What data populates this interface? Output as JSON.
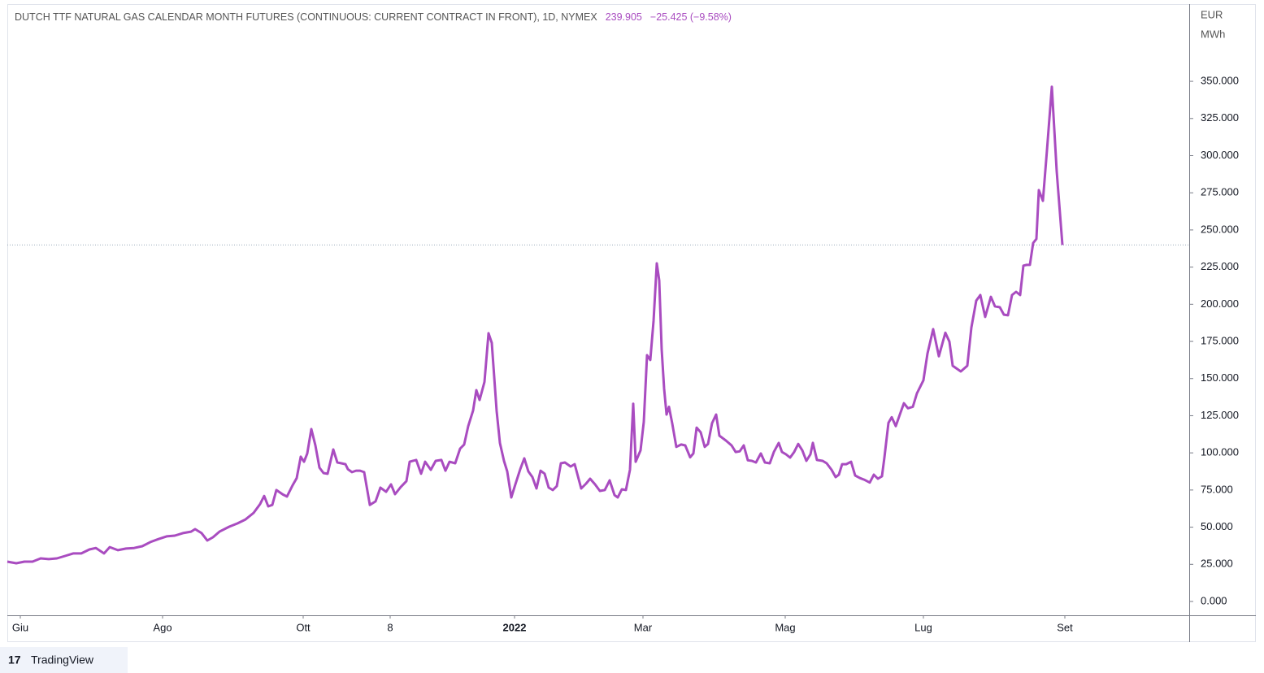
{
  "chart_data": {
    "type": "line",
    "title": "DUTCH TTF NATURAL GAS CALENDAR MONTH FUTURES (CONTINUOUS: CURRENT CONTRACT IN FRONT), 1D, NYMEX",
    "price": "239.905",
    "change": "−25.425 (−9.58%)",
    "unit_top": "EUR",
    "unit_bottom": "MWh",
    "brand": "TradingView",
    "color": "#a94cc0",
    "last_price_line": true,
    "xlim": [
      0,
      1454
    ],
    "ylim": [
      -9.3,
      402
    ],
    "xticks": [
      {
        "value": 16,
        "label": "Giu"
      },
      {
        "value": 191,
        "label": "Ago"
      },
      {
        "value": 364,
        "label": "Ott"
      },
      {
        "value": 471,
        "label": "8"
      },
      {
        "value": 624,
        "label": "2022",
        "bold": true
      },
      {
        "value": 782,
        "label": "Mar"
      },
      {
        "value": 957,
        "label": "Mag"
      },
      {
        "value": 1127,
        "label": "Lug"
      },
      {
        "value": 1301,
        "label": "Set"
      }
    ],
    "yticks": [
      {
        "value": 0,
        "label": "0.000"
      },
      {
        "value": 25,
        "label": "25.000"
      },
      {
        "value": 50,
        "label": "50.000"
      },
      {
        "value": 75,
        "label": "75.000"
      },
      {
        "value": 100,
        "label": "100.000"
      },
      {
        "value": 125,
        "label": "125.000"
      },
      {
        "value": 150,
        "label": "150.000"
      },
      {
        "value": 175,
        "label": "175.000"
      },
      {
        "value": 200,
        "label": "200.000"
      },
      {
        "value": 225,
        "label": "225.000"
      },
      {
        "value": 250,
        "label": "250.000"
      },
      {
        "value": 275,
        "label": "275.000"
      },
      {
        "value": 300,
        "label": "300.000"
      },
      {
        "value": 325,
        "label": "325.000"
      },
      {
        "value": 350,
        "label": "350.000"
      }
    ],
    "x": [
      0,
      11,
      21,
      31,
      41,
      51,
      61,
      71,
      81,
      91,
      101,
      109,
      119,
      126,
      136,
      146,
      156,
      166,
      176,
      186,
      196,
      206,
      216,
      226,
      231,
      239,
      246,
      253,
      261,
      273,
      283,
      293,
      303,
      311,
      316,
      321,
      326,
      331,
      339,
      344,
      351,
      356,
      361,
      365,
      369,
      374,
      379,
      384,
      389,
      394,
      401,
      406,
      411,
      416,
      419,
      424,
      429,
      434,
      439,
      446,
      453,
      459,
      466,
      472,
      477,
      484,
      491,
      495,
      503,
      509,
      514,
      521,
      527,
      534,
      539,
      544,
      551,
      557,
      562,
      567,
      573,
      577,
      581,
      587,
      592,
      596,
      602,
      606,
      611,
      615,
      620,
      625,
      631,
      636,
      641,
      646,
      651,
      656,
      661,
      666,
      671,
      676,
      681,
      686,
      693,
      698,
      706,
      712,
      717,
      723,
      729,
      735,
      741,
      747,
      751,
      756,
      761,
      766,
      770,
      773,
      779,
      783,
      787,
      791,
      795,
      799,
      802,
      805,
      808,
      811,
      814,
      818,
      823,
      829,
      834,
      840,
      844,
      848,
      853,
      858,
      862,
      867,
      872,
      876,
      884,
      891,
      896,
      901,
      906,
      911,
      916,
      921,
      927,
      932,
      938,
      943,
      949,
      953,
      958,
      963,
      968,
      973,
      978,
      983,
      988,
      991,
      996,
      1003,
      1008,
      1014,
      1019,
      1023,
      1027,
      1032,
      1038,
      1043,
      1049,
      1054,
      1061,
      1066,
      1071,
      1076,
      1079,
      1084,
      1088,
      1093,
      1098,
      1103,
      1108,
      1114,
      1119,
      1127,
      1132,
      1139,
      1146,
      1154,
      1159,
      1163,
      1173,
      1181,
      1186,
      1192,
      1197,
      1203,
      1210,
      1215,
      1221,
      1226,
      1231,
      1236,
      1241,
      1246,
      1250,
      1254,
      1258,
      1262,
      1266,
      1269,
      1274,
      1279,
      1285,
      1291,
      1298
    ],
    "values": [
      26.8,
      25.7,
      26.8,
      26.8,
      29,
      28.5,
      29,
      30.6,
      32.3,
      32.3,
      35,
      36,
      32.3,
      36.6,
      34.5,
      35.6,
      36,
      37.2,
      40,
      42,
      43.8,
      44.3,
      46,
      47,
      48.7,
      46,
      41,
      43.2,
      47,
      50.3,
      52.5,
      55.2,
      59.6,
      65.6,
      71,
      64,
      65,
      75,
      72,
      70.6,
      78.2,
      83,
      97.4,
      94,
      99.6,
      116,
      105,
      90,
      86.4,
      85.9,
      102.3,
      93.5,
      93,
      92.4,
      89,
      87,
      88,
      88,
      87,
      65,
      67.3,
      76.6,
      73.8,
      78.8,
      72.2,
      77,
      81,
      94,
      95.2,
      86,
      94,
      88.6,
      94.6,
      95.2,
      88,
      94,
      93,
      102.8,
      105.6,
      118,
      128.5,
      142.2,
      135.6,
      147.7,
      180.5,
      174,
      128,
      106.7,
      94.6,
      87.5,
      70,
      78.8,
      89,
      96.3,
      87.5,
      83.7,
      76,
      88,
      86,
      76.6,
      75,
      77.6,
      93,
      93.5,
      90.8,
      92.4,
      76,
      79.3,
      82.6,
      78.8,
      74.4,
      75,
      81.5,
      71.6,
      70,
      75.5,
      75,
      88.6,
      133,
      94,
      101.7,
      120.8,
      165.7,
      162.5,
      188.7,
      227.5,
      216,
      169.6,
      143.3,
      125.8,
      131,
      119.8,
      104,
      105.6,
      105,
      97,
      99.6,
      117,
      113.8,
      104,
      106,
      120,
      125.8,
      111.6,
      108.3,
      105,
      100.6,
      101,
      105,
      95,
      94.6,
      93.5,
      99.6,
      93.5,
      93,
      100.6,
      106.7,
      100.6,
      99,
      96.8,
      100.6,
      106,
      101.7,
      94.6,
      99,
      106.7,
      95.2,
      94.6,
      93,
      88.6,
      83.7,
      85.3,
      92.4,
      92.4,
      94,
      84.8,
      83,
      82,
      80,
      85.3,
      82.6,
      84.2,
      96.8,
      120.2,
      124,
      118,
      125.8,
      133.4,
      130,
      131,
      140,
      148.8,
      166.8,
      183.2,
      165,
      180.8,
      174.8,
      158.6,
      154.8,
      158.6,
      184.3,
      202.4,
      206.2,
      191.5,
      205,
      198.6,
      198,
      193,
      192.6,
      206.2,
      208.4,
      206.2,
      226,
      226.5,
      226.5,
      241.2,
      244,
      276.8,
      269.6,
      303.6,
      346.3,
      289.4,
      239.905
    ]
  }
}
